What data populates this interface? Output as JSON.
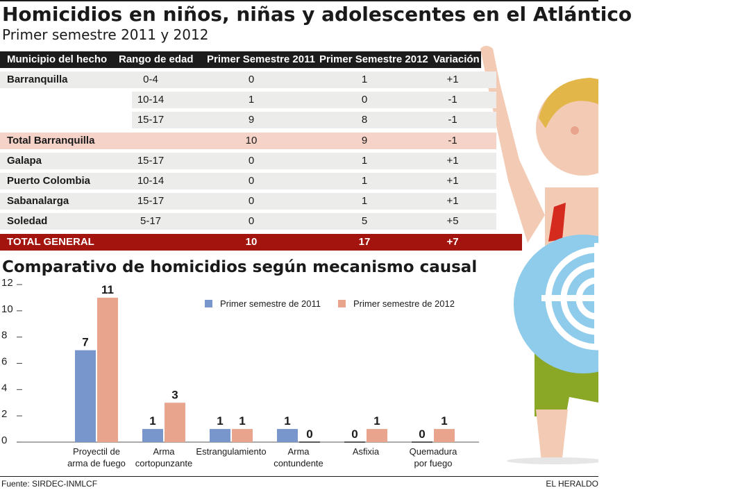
{
  "title": "Homicidios en niños, niñas y adolescentes en el Atlántico",
  "subtitle": "Primer semestre 2011 y 2012",
  "table": {
    "headers": [
      "Municipio del hecho",
      "Rango de edad",
      "Primer Semestre 2011",
      "Primer Semestre 2012",
      "Variación"
    ],
    "rows": [
      {
        "municipio": "Barranquilla",
        "rango": "0-4",
        "s2011": "0",
        "s2012": "1",
        "var": "+1",
        "style": "gray"
      },
      {
        "municipio": "",
        "rango": "10-14",
        "s2011": "1",
        "s2012": "0",
        "var": "-1",
        "style": "gray-sub"
      },
      {
        "municipio": "",
        "rango": "15-17",
        "s2011": "9",
        "s2012": "8",
        "var": "-1",
        "style": "gray-sub"
      },
      {
        "municipio": "Total Barranquilla",
        "rango": "",
        "s2011": "10",
        "s2012": "9",
        "var": "-1",
        "style": "pink"
      },
      {
        "municipio": "Galapa",
        "rango": "15-17",
        "s2011": "0",
        "s2012": "1",
        "var": "+1",
        "style": "gray"
      },
      {
        "municipio": "Puerto Colombia",
        "rango": "10-14",
        "s2011": "0",
        "s2012": "1",
        "var": "+1",
        "style": "gray"
      },
      {
        "municipio": "Sabanalarga",
        "rango": "15-17",
        "s2011": "0",
        "s2012": "1",
        "var": "+1",
        "style": "gray"
      },
      {
        "municipio": "Soledad",
        "rango": "5-17",
        "s2011": "0",
        "s2012": "5",
        "var": "+5",
        "style": "gray"
      },
      {
        "municipio": "TOTAL GENERAL",
        "rango": "",
        "s2011": "10",
        "s2012": "17",
        "var": "+7",
        "style": "red"
      }
    ]
  },
  "chart_title": "Comparativo de homicidios según mecanismo causal",
  "chart_data": {
    "type": "bar",
    "categories": [
      [
        "Proyectil de",
        "arma de fuego"
      ],
      [
        "Arma",
        "cortopunzante"
      ],
      [
        "Estrangulamiento"
      ],
      [
        "Arma",
        "contundente"
      ],
      [
        "Asfixia"
      ],
      [
        "Quemadura",
        "por fuego"
      ]
    ],
    "series": [
      {
        "name": "Primer semestre de 2011",
        "values": [
          7,
          1,
          1,
          1,
          0,
          0
        ],
        "color": "#7896cc"
      },
      {
        "name": "Primer semestre de 2012",
        "values": [
          11,
          3,
          1,
          0,
          1,
          1
        ],
        "color": "#e8a48c"
      }
    ],
    "ylim": [
      0,
      12
    ],
    "yticks": [
      0,
      2,
      4,
      6,
      8,
      10,
      12
    ],
    "legend": "top",
    "grid": false
  },
  "footer": {
    "source": "Fuente: SIRDEC-INMLCF",
    "brand": "EL HERALDO"
  },
  "colors": {
    "header_bg": "#1c1c1c",
    "row_gray": "#ececea",
    "row_pink": "#f5d3c8",
    "row_red": "#a3140f"
  }
}
